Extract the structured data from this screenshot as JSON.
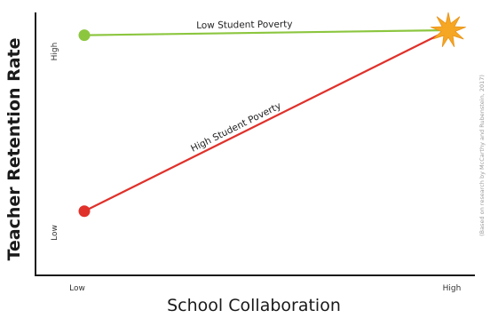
{
  "chart_data": {
    "type": "line",
    "title": "",
    "xlabel": "School Collaboration",
    "ylabel": "Teacher Retention Rate",
    "x_ticks": [
      "Low",
      "High"
    ],
    "y_ticks": [
      "Low",
      "High"
    ],
    "xlim": [
      0,
      1
    ],
    "ylim": [
      0,
      1
    ],
    "grid": false,
    "legend": "none",
    "series": [
      {
        "name": "Low Student Poverty",
        "color": "#8cc63f",
        "x": [
          0,
          1
        ],
        "y": [
          0.92,
          0.94
        ]
      },
      {
        "name": "High Student Poverty",
        "color": "#e0312b",
        "x": [
          0,
          1
        ],
        "y": [
          0.22,
          0.94
        ]
      }
    ],
    "annotations": {
      "credit": "(Based on research by McCarthy and Rubenstein, 2017)",
      "convergence_marker": "star",
      "star_color": "#f5a623"
    }
  }
}
